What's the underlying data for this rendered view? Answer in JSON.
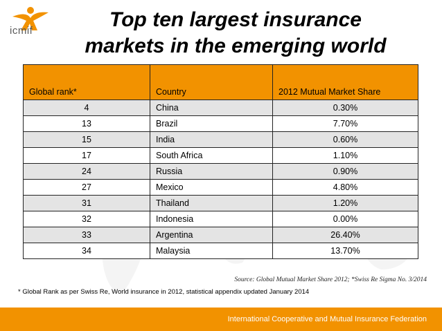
{
  "logo": {
    "text": "icmif"
  },
  "title": {
    "line1": "Top ten largest insurance",
    "line2": "markets in the emerging world"
  },
  "table": {
    "headers": [
      "Global rank*",
      "Country",
      "2012 Mutual Market Share"
    ],
    "rows": [
      {
        "rank": "4",
        "country": "China",
        "share": "0.30%"
      },
      {
        "rank": "13",
        "country": "Brazil",
        "share": "7.70%"
      },
      {
        "rank": "15",
        "country": "India",
        "share": "0.60%"
      },
      {
        "rank": "17",
        "country": "South Africa",
        "share": "1.10%"
      },
      {
        "rank": "24",
        "country": "Russia",
        "share": "0.90%"
      },
      {
        "rank": "27",
        "country": "Mexico",
        "share": "4.80%"
      },
      {
        "rank": "31",
        "country": "Thailand",
        "share": "1.20%"
      },
      {
        "rank": "32",
        "country": "Indonesia",
        "share": "0.00%"
      },
      {
        "rank": "33",
        "country": "Argentina",
        "share": "26.40%"
      },
      {
        "rank": "34",
        "country": "Malaysia",
        "share": "13.70%"
      }
    ]
  },
  "source": "Source: Global Mutual Market Share 2012; *Swiss Re Sigma No. 3/2014",
  "footnote": "* Global Rank as per Swiss Re, World insurance in 2012, statistical appendix updated January 2014",
  "footer": {
    "text": "International Cooperative and Mutual Insurance Federation"
  },
  "colors": {
    "accent": "#f29200",
    "row_alt": "#e4e4e4"
  }
}
